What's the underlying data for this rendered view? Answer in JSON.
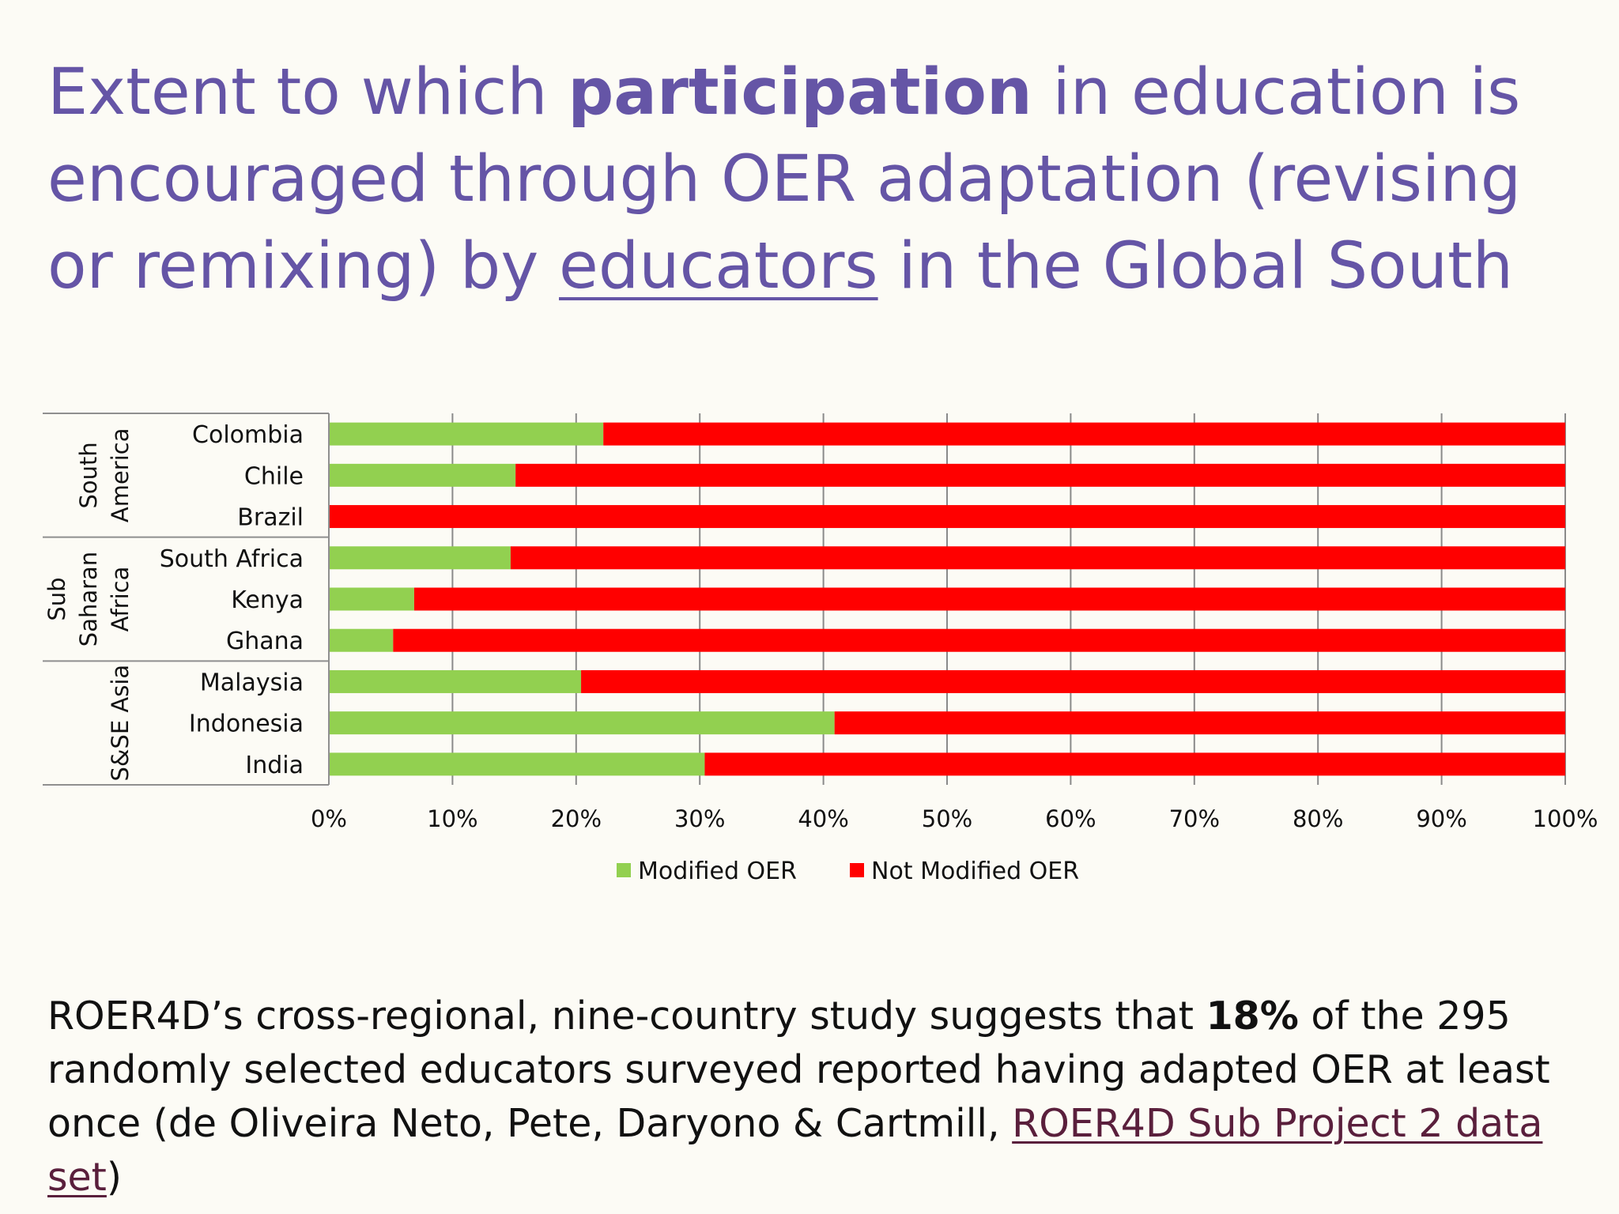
{
  "title": {
    "part1": "Extent to which ",
    "bold": "participation",
    "part2": " in education is encouraged through OER adaptation (revising or remixing) by ",
    "underlined": "educators",
    "part3": " in the Global South"
  },
  "chart_data": {
    "type": "bar",
    "orientation": "horizontal",
    "stacked": true,
    "groups": [
      {
        "name": "South America",
        "categories": [
          "Colombia",
          "Chile",
          "Brazil"
        ]
      },
      {
        "name": "Sub Saharan Africa",
        "categories": [
          "South Africa",
          "Kenya",
          "Ghana"
        ]
      },
      {
        "name": "S&SE Asia",
        "categories": [
          "Malaysia",
          "Indonesia",
          "India"
        ]
      }
    ],
    "categories": [
      "Colombia",
      "Chile",
      "Brazil",
      "South Africa",
      "Kenya",
      "Ghana",
      "Malaysia",
      "Indonesia",
      "India"
    ],
    "series": [
      {
        "name": "Modified OER",
        "color": "#92d050",
        "values": [
          22.2,
          15.1,
          0,
          14.7,
          6.9,
          5.2,
          20.4,
          40.9,
          30.4
        ]
      },
      {
        "name": "Not Modified OER",
        "color": "#ff0000",
        "values": [
          77.8,
          84.9,
          100,
          85.3,
          93.1,
          94.8,
          79.6,
          59.1,
          69.6
        ]
      }
    ],
    "xlim": [
      0,
      100
    ],
    "x_ticks": [
      "0%",
      "10%",
      "20%",
      "30%",
      "40%",
      "50%",
      "60%",
      "70%",
      "80%",
      "90%",
      "100%"
    ],
    "grid": true,
    "legend_position": "bottom"
  },
  "caption": {
    "part1": "ROER4D’s cross-regional, nine-country study suggests that ",
    "bold": "18%",
    "part2": " of the 295 randomly selected educators surveyed reported having adapted OER at least once (de Oliveira Neto, Pete, Daryono & Cartmill, ",
    "link": "ROER4D Sub Project 2 data set",
    "part3": ")"
  }
}
